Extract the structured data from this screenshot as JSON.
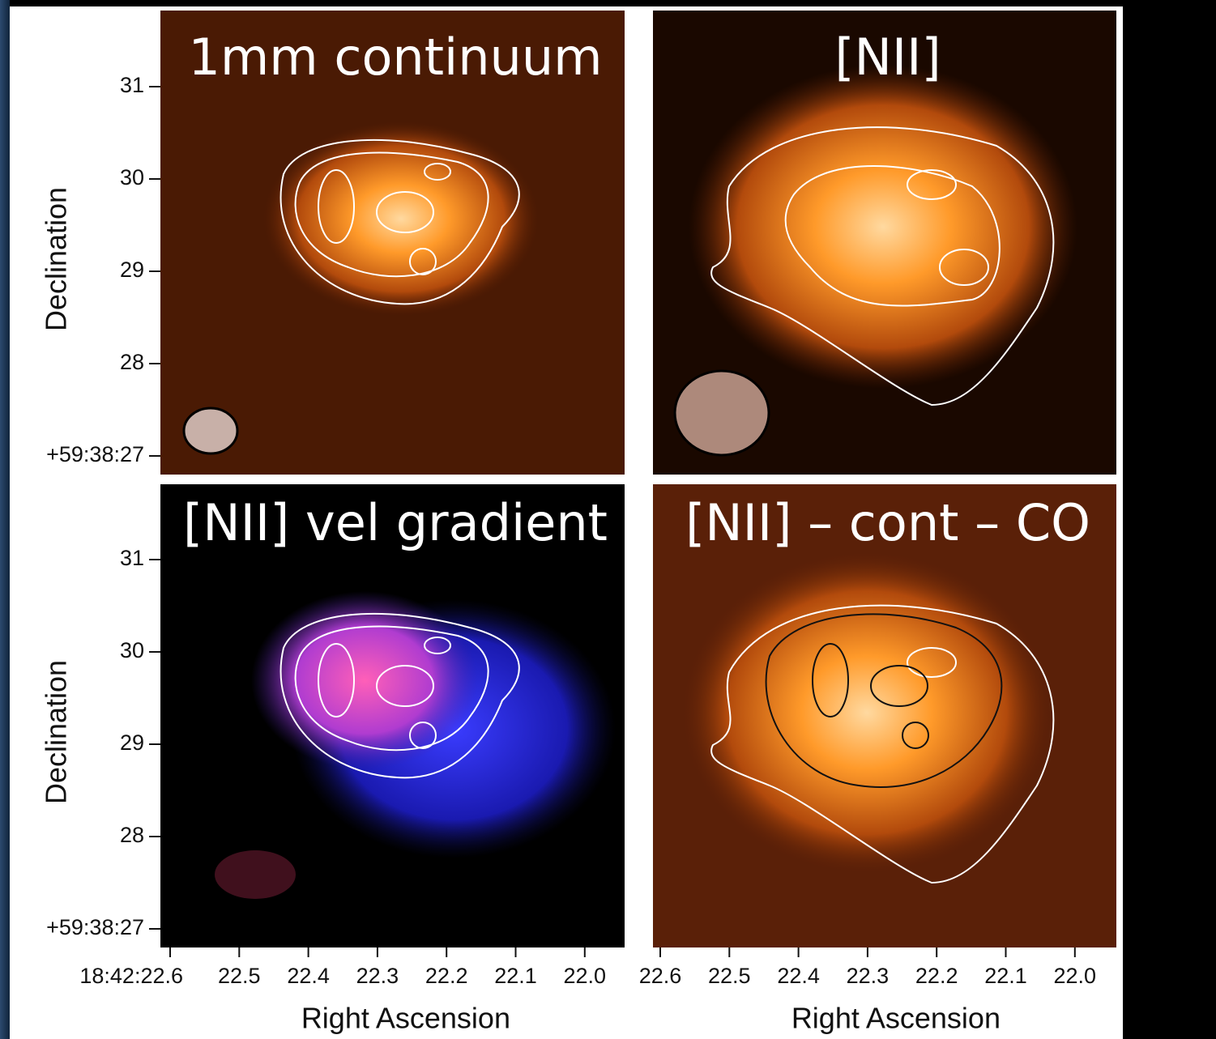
{
  "panels": [
    {
      "title": "1mm continuum"
    },
    {
      "title": "[NII]"
    },
    {
      "title": "[NII] vel gradient"
    },
    {
      "title": "[NII] – cont – CO"
    }
  ],
  "rows": [
    {
      "y_label": "Declination",
      "y_ticks": [
        "31",
        "30",
        "29",
        "28",
        "+59:38:27"
      ]
    },
    {
      "y_label": "Declination",
      "y_ticks": [
        "31",
        "30",
        "29",
        "28",
        "+59:38:27"
      ]
    }
  ],
  "columns": [
    {
      "x_label": "Right Ascension",
      "x_ticks": [
        "18:42:22.6",
        "22.5",
        "22.4",
        "22.3",
        "22.2",
        "22.1",
        "22.0"
      ]
    },
    {
      "x_label": "Right Ascension",
      "x_ticks": [
        "22.6",
        "22.5",
        "22.4",
        "22.3",
        "22.2",
        "22.1",
        "22.0"
      ]
    }
  ]
}
